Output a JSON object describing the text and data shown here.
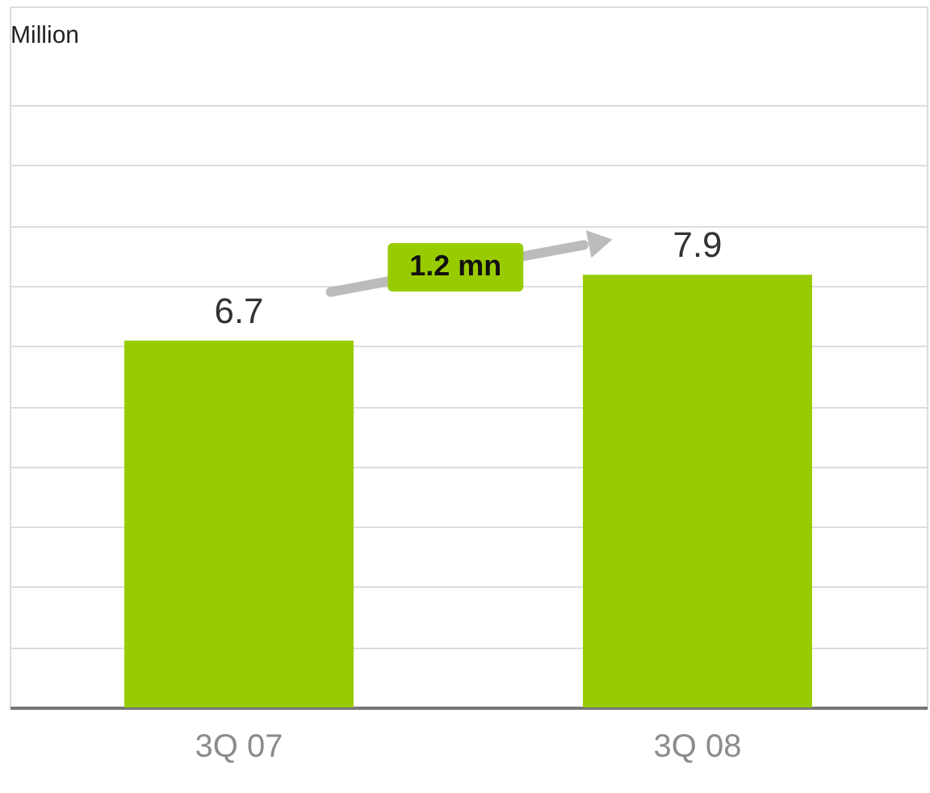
{
  "chart_data": {
    "type": "bar",
    "ylabel": "Million",
    "categories": [
      "3Q 07",
      "3Q 08"
    ],
    "values": [
      6.7,
      7.9
    ],
    "color": "#99cc00",
    "data_labels": true,
    "ylim": [
      0,
      12.8
    ],
    "yticks": [
      {
        "value": 0,
        "label": null
      },
      {
        "value": 1.1,
        "label": null
      },
      {
        "value": 2.2,
        "label": null
      },
      {
        "value": 3.3,
        "label": null
      },
      {
        "value": 4.4,
        "label": null
      },
      {
        "value": 5.5,
        "label": null
      },
      {
        "value": 6.6,
        "label": null
      },
      {
        "value": 7.7,
        "label": null
      },
      {
        "value": 8.8,
        "label": null
      },
      {
        "value": 9.9,
        "label": null
      },
      {
        "value": 11.0,
        "label": null
      }
    ],
    "tick_labels": "x",
    "grid": "y",
    "annotations": [
      "1.2 mn"
    ]
  }
}
